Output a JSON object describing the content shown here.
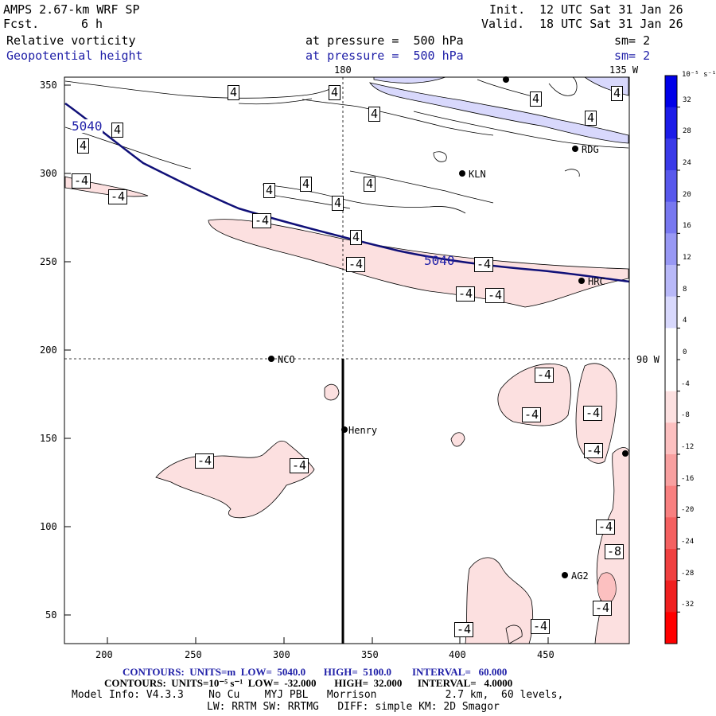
{
  "header": {
    "model_title": "AMPS 2.67-km WRF SP",
    "forecast_label": "Fcst.",
    "forecast_hours": "6 h",
    "init_label": "Init.",
    "init_time": "12 UTC Sat 31 Jan 26",
    "valid_label": "Valid.",
    "valid_time": "18 UTC Sat 31 Jan 26",
    "field1_name": "Relative vorticity",
    "field1_level": "at pressure =  500 hPa",
    "field1_smooth": "sm= 2",
    "field2_name": "Geopotential height",
    "field2_level": "at pressure =  500 hPa",
    "field2_smooth": "sm= 2"
  },
  "map": {
    "x_ticks": [
      "200",
      "250",
      "300",
      "350",
      "400",
      "450"
    ],
    "y_ticks": [
      "350",
      "300",
      "250",
      "200",
      "150",
      "100",
      "50"
    ],
    "meridian_labels": {
      "lon180": "180",
      "lon135": "135 W",
      "lon90": "90 W"
    },
    "stations": [
      "RDG",
      "KLN",
      "HRC",
      "NCO",
      "Henry",
      "AG2"
    ],
    "height_contour_label": "5040",
    "vort_labels": [
      "4",
      "-4",
      "-8"
    ]
  },
  "colorbar": {
    "unit_label": "10⁻⁵ s⁻¹",
    "ticks": [
      "32",
      "28",
      "24",
      "20",
      "16",
      "12",
      "8",
      "4",
      "0",
      "-4",
      "-8",
      "-12",
      "-16",
      "-20",
      "-24",
      "-28",
      "-32"
    ],
    "colors": [
      "#0000e8",
      "#1c1ce8",
      "#3a3ae8",
      "#5858ec",
      "#7878f0",
      "#9898f4",
      "#b8b8f8",
      "#d8d8fc",
      "#ffffff",
      "#ffffff",
      "#fce0e0",
      "#fcc0c0",
      "#f8a0a0",
      "#f88080",
      "#f46060",
      "#f04040",
      "#f02020",
      "#ff0000"
    ]
  },
  "footer": {
    "height_contours": "CONTOURS:  UNITS=m  LOW=  5040.0       HIGH=  5100.0        INTERVAL=   60.000",
    "vort_contours": "CONTOURS:  UNITS=10⁻⁵ s⁻¹  LOW=  -32.000       HIGH=  32.000      INTERVAL=   4.0000",
    "model_info": "Model Info: V4.3.3    No Cu    MYJ PBL   Morrison           2.7 km,  60 levels,",
    "physics": "LW: RRTM SW: RRTMG   DIFF: simple KM: 2D Smagor"
  }
}
